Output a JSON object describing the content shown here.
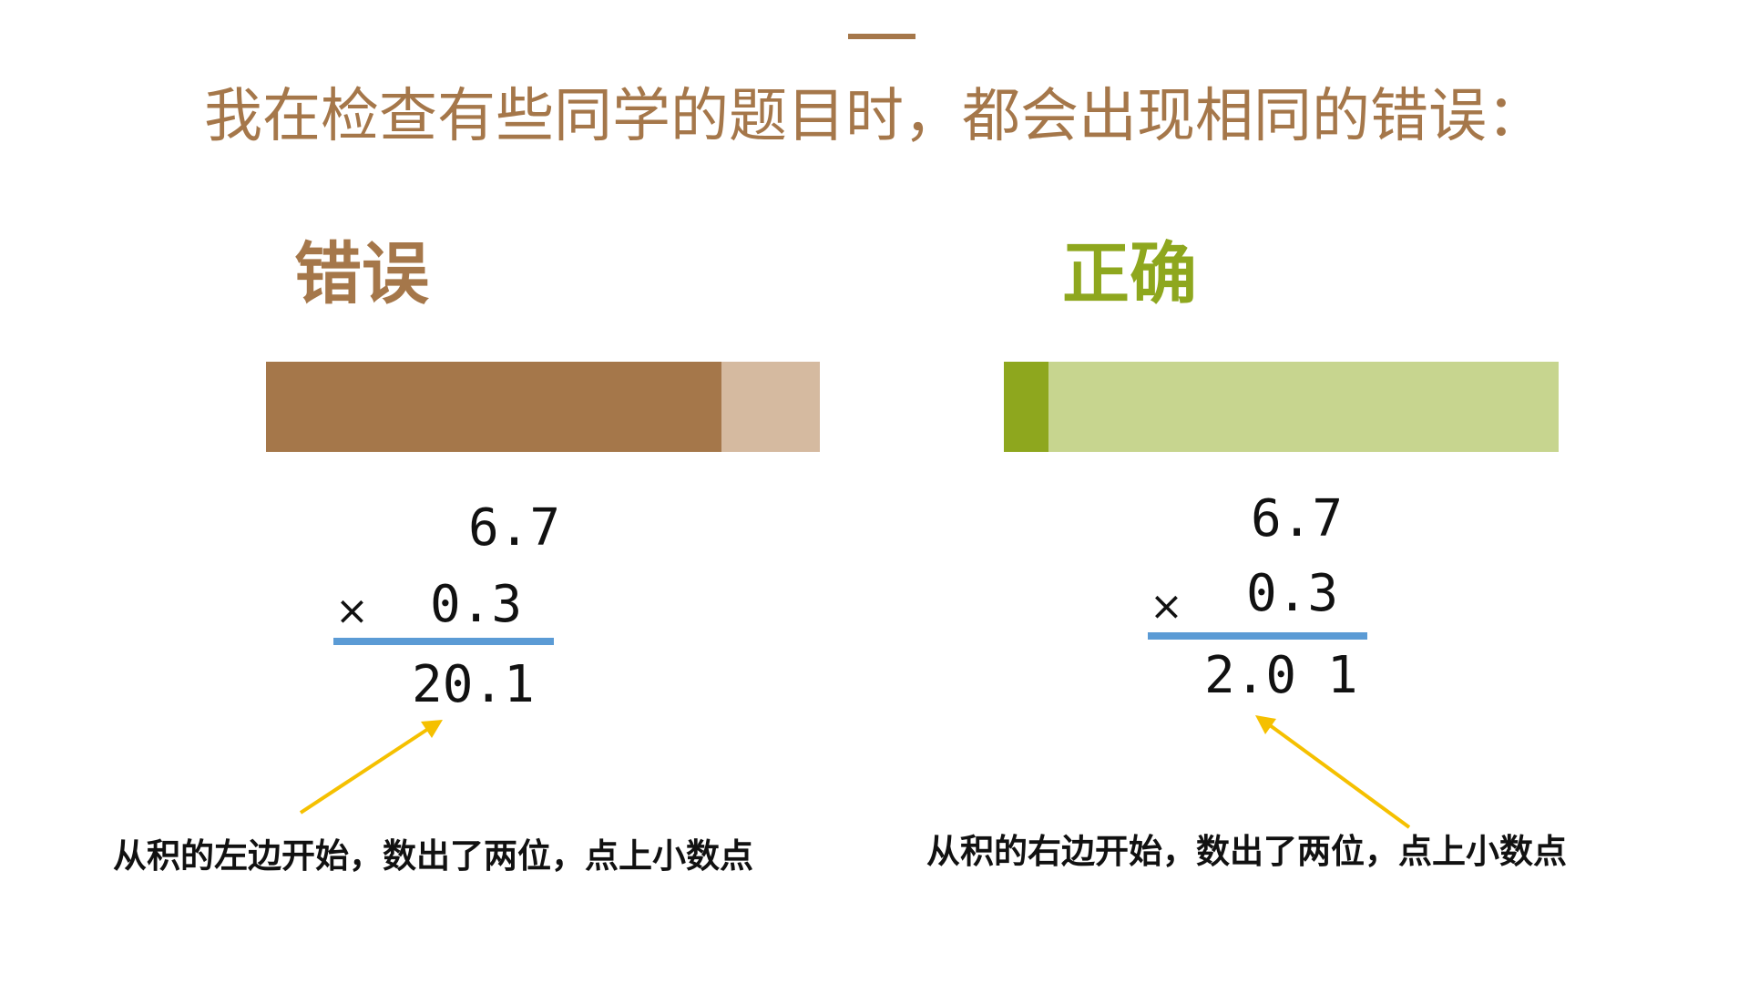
{
  "slide": {
    "title": "我在检查有些同学的题目时，都会出现相同的错误：",
    "accent_color": "#a5774a",
    "wrong": {
      "heading": "错误",
      "heading_color": "#a5774a",
      "multiplicand": "6.7",
      "times_sign": "×",
      "multiplier": "0.3",
      "product": "20.1",
      "note": "从积的左边开始，数出了两位，点上小数点"
    },
    "right": {
      "heading": "正确",
      "heading_color": "#8ea71e",
      "multiplicand": "6.7",
      "times_sign": "×",
      "multiplier": "0.3",
      "product": "2.0 1",
      "note": "从积的右边开始，数出了两位，点上小数点"
    },
    "arrow_color": "#f5c000",
    "rule_color": "#5b9bd5"
  }
}
